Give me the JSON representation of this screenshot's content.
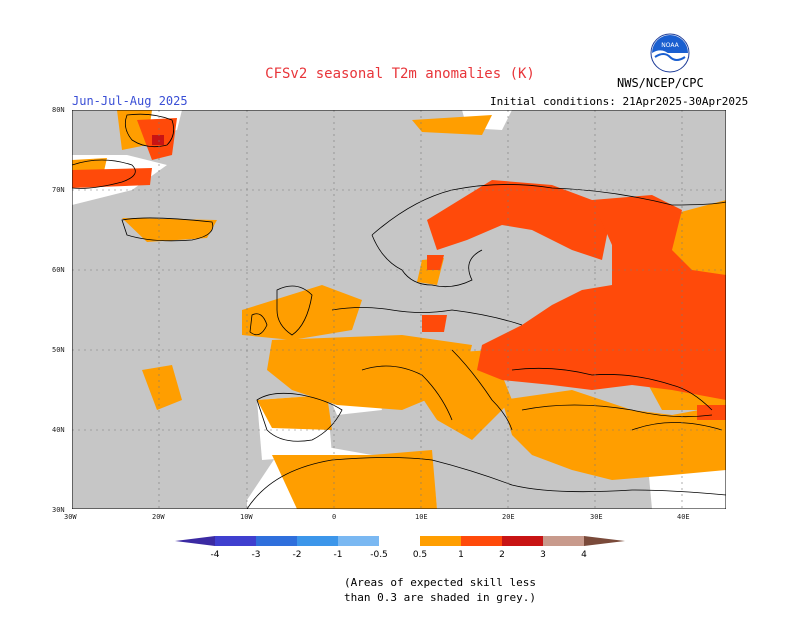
{
  "header": {
    "title": "CFSv2 seasonal T2m anomalies (K)",
    "season": "Jun-Jul-Aug 2025",
    "initial_conditions": "Initial conditions: 21Apr2025-30Apr2025",
    "agency": "NWS/NCEP/CPC",
    "logo_text": "NOAA"
  },
  "map": {
    "lat_labels": [
      "80N",
      "70N",
      "60N",
      "50N",
      "40N",
      "30N"
    ],
    "lon_labels": [
      "30W",
      "20W",
      "10W",
      "0",
      "10E",
      "20E",
      "30E",
      "40E"
    ],
    "region": "Europe"
  },
  "legend": {
    "labels": [
      "-4",
      "-3",
      "-2",
      "-1",
      "-0.5",
      "0.5",
      "1",
      "2",
      "3",
      "4"
    ],
    "colors": {
      "lt_-4": "#3b2aa3",
      "-4_-3": "#3f3fcf",
      "-3_-2": "#2f6fdc",
      "-2_-1": "#3c96ea",
      "-1_-0.5": "#7ab8f2",
      "-0.5_0.5": "#ffffff",
      "0.5_1": "#ff9e00",
      "1_2": "#ff4a0a",
      "2_3": "#c81414",
      "3_4": "#c89a8c",
      "gt_4": "#7a4a3a",
      "low_skill": "#c8c8c8"
    }
  },
  "footnote": {
    "line1": "(Areas of expected skill less",
    "line2": "than 0.3 are shaded in grey.)"
  }
}
